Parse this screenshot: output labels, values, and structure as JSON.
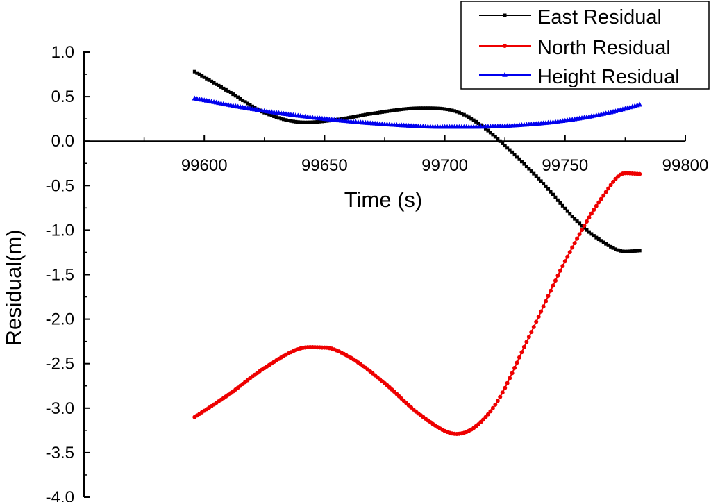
{
  "chart_data": {
    "type": "line",
    "title": "",
    "xlabel": "Time (s)",
    "ylabel": "Residual(m)",
    "xlim": [
      99550,
      99800
    ],
    "ylim": [
      -4.0,
      1.0
    ],
    "x_ticks": [
      99600,
      99650,
      99700,
      99750,
      99800
    ],
    "x_tick_labels": [
      "99600",
      "99650",
      "99700",
      "99750",
      "99800"
    ],
    "y_ticks": [
      1.0,
      0.5,
      0.0,
      -0.5,
      -1.0,
      -1.5,
      -2.0,
      -2.5,
      -3.0,
      -3.5,
      -4.0
    ],
    "y_tick_labels": [
      "1.0",
      "0.5",
      "0.0",
      "-0.5",
      "-1.0",
      "-1.5",
      "-2.0",
      "-2.5",
      "-3.0",
      "-3.5",
      "-4.0"
    ],
    "x_axis_at_y": 0,
    "grid": false,
    "legend_position": "top-right",
    "x_sample_start": 99596,
    "x_sample_end": 99781,
    "x_sample_step": 1,
    "series": [
      {
        "name": "East Residual",
        "color": "#000000",
        "marker": "square",
        "points": [
          [
            99596,
            0.78
          ],
          [
            99610,
            0.56
          ],
          [
            99625,
            0.32
          ],
          [
            99642,
            0.21
          ],
          [
            99655,
            0.24
          ],
          [
            99670,
            0.31
          ],
          [
            99690,
            0.37
          ],
          [
            99705,
            0.33
          ],
          [
            99715,
            0.18
          ],
          [
            99725,
            -0.05
          ],
          [
            99740,
            -0.45
          ],
          [
            99755,
            -0.9
          ],
          [
            99765,
            -1.12
          ],
          [
            99775,
            -1.24
          ],
          [
            99781,
            -1.23
          ]
        ]
      },
      {
        "name": "North Residual",
        "color": "#ee0000",
        "marker": "circle",
        "points": [
          [
            99596,
            -3.1
          ],
          [
            99610,
            -2.85
          ],
          [
            99625,
            -2.55
          ],
          [
            99640,
            -2.33
          ],
          [
            99650,
            -2.32
          ],
          [
            99660,
            -2.42
          ],
          [
            99675,
            -2.72
          ],
          [
            99690,
            -3.08
          ],
          [
            99705,
            -3.29
          ],
          [
            99720,
            -3.0
          ],
          [
            99735,
            -2.2
          ],
          [
            99750,
            -1.35
          ],
          [
            99765,
            -0.65
          ],
          [
            99775,
            -0.36
          ],
          [
            99781,
            -0.37
          ]
        ]
      },
      {
        "name": "Height Residual",
        "color": "#0000ee",
        "marker": "triangle",
        "points": [
          [
            99596,
            0.48
          ],
          [
            99620,
            0.36
          ],
          [
            99650,
            0.25
          ],
          [
            99675,
            0.19
          ],
          [
            99700,
            0.16
          ],
          [
            99725,
            0.17
          ],
          [
            99750,
            0.23
          ],
          [
            99770,
            0.33
          ],
          [
            99781,
            0.41
          ]
        ]
      }
    ]
  }
}
